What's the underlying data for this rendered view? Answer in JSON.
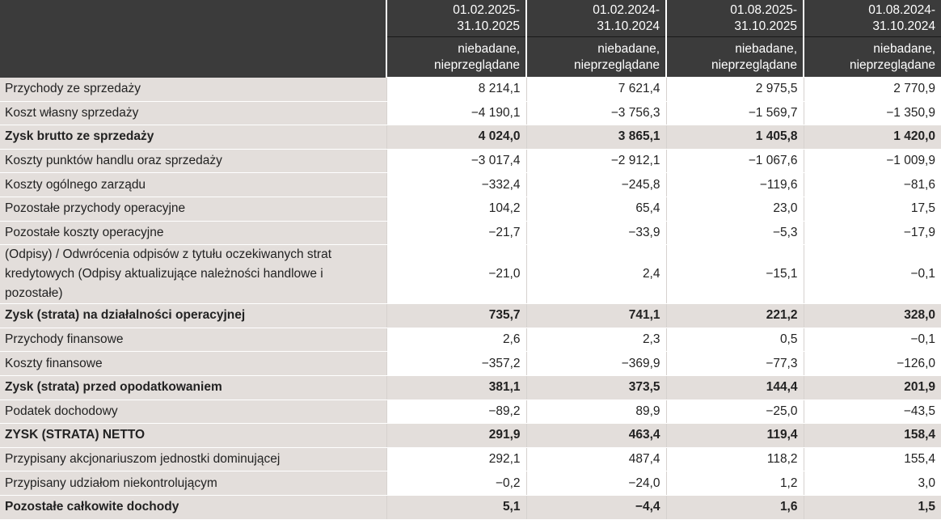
{
  "header": {
    "periods": [
      {
        "line1": "01.02.2025-",
        "line2": "31.10.2025",
        "status1": "niebadane,",
        "status2": "nieprzeglądane"
      },
      {
        "line1": "01.02.2024-",
        "line2": "31.10.2024",
        "status1": "niebadane,",
        "status2": "nieprzeglądane"
      },
      {
        "line1": "01.08.2025-",
        "line2": "31.10.2025",
        "status1": "niebadane,",
        "status2": "nieprzeglądane"
      },
      {
        "line1": "01.08.2024-",
        "line2": "31.10.2024",
        "status1": "niebadane,",
        "status2": "nieprzeglądane"
      }
    ]
  },
  "rows": [
    {
      "label": "Przychody ze sprzedaży",
      "values": [
        "8 214,1",
        "7 621,4",
        "2 975,5",
        "2 770,9"
      ]
    },
    {
      "label": "Koszt własny sprzedaży",
      "values": [
        "−4 190,1",
        "−3 756,3",
        "−1 569,7",
        "−1 350,9"
      ]
    },
    {
      "label": "Zysk brutto ze sprzedaży",
      "values": [
        "4 024,0",
        "3 865,1",
        "1 405,8",
        "1 420,0"
      ]
    },
    {
      "label": "Koszty punktów handlu oraz sprzedaży",
      "values": [
        "−3 017,4",
        "−2 912,1",
        "−1 067,6",
        "−1 009,9"
      ]
    },
    {
      "label": "Koszty ogólnego zarządu",
      "values": [
        "−332,4",
        "−245,8",
        "−119,6",
        "−81,6"
      ]
    },
    {
      "label": "Pozostałe przychody operacyjne",
      "values": [
        "104,2",
        "65,4",
        "23,0",
        "17,5"
      ]
    },
    {
      "label": "Pozostałe koszty operacyjne",
      "values": [
        "−21,7",
        "−33,9",
        "−5,3",
        "−17,9"
      ]
    },
    {
      "label": "(Odpisy) / Odwrócenia odpisów z tytułu oczekiwanych strat kredytowych (Odpisy aktualizujące należności handlowe i pozostałe)",
      "values": [
        "−21,0",
        "2,4",
        "−15,1",
        "−0,1"
      ]
    },
    {
      "label": "Zysk (strata) na działalności operacyjnej",
      "values": [
        "735,7",
        "741,1",
        "221,2",
        "328,0"
      ]
    },
    {
      "label": "Przychody finansowe",
      "values": [
        "2,6",
        "2,3",
        "0,5",
        "−0,1"
      ]
    },
    {
      "label": "Koszty finansowe",
      "values": [
        "−357,2",
        "−369,9",
        "−77,3",
        "−126,0"
      ]
    },
    {
      "label": "Zysk (strata) przed opodatkowaniem",
      "values": [
        "381,1",
        "373,5",
        "144,4",
        "201,9"
      ]
    },
    {
      "label": "Podatek dochodowy",
      "values": [
        "−89,2",
        "89,9",
        "−25,0",
        "−43,5"
      ]
    },
    {
      "label": "ZYSK (STRATA) NETTO",
      "values": [
        "291,9",
        "463,4",
        "119,4",
        "158,4"
      ]
    },
    {
      "label": "Przypisany akcjonariuszom jednostki dominującej",
      "values": [
        "292,1",
        "487,4",
        "118,2",
        "155,4"
      ]
    },
    {
      "label": "Przypisany udziałom niekontrolującym",
      "values": [
        "−0,2",
        "−24,0",
        "1,2",
        "3,0"
      ]
    },
    {
      "label": "Pozostałe całkowite dochody",
      "values": [
        "5,1",
        "−4,4",
        "1,6",
        "1,5"
      ]
    }
  ]
}
